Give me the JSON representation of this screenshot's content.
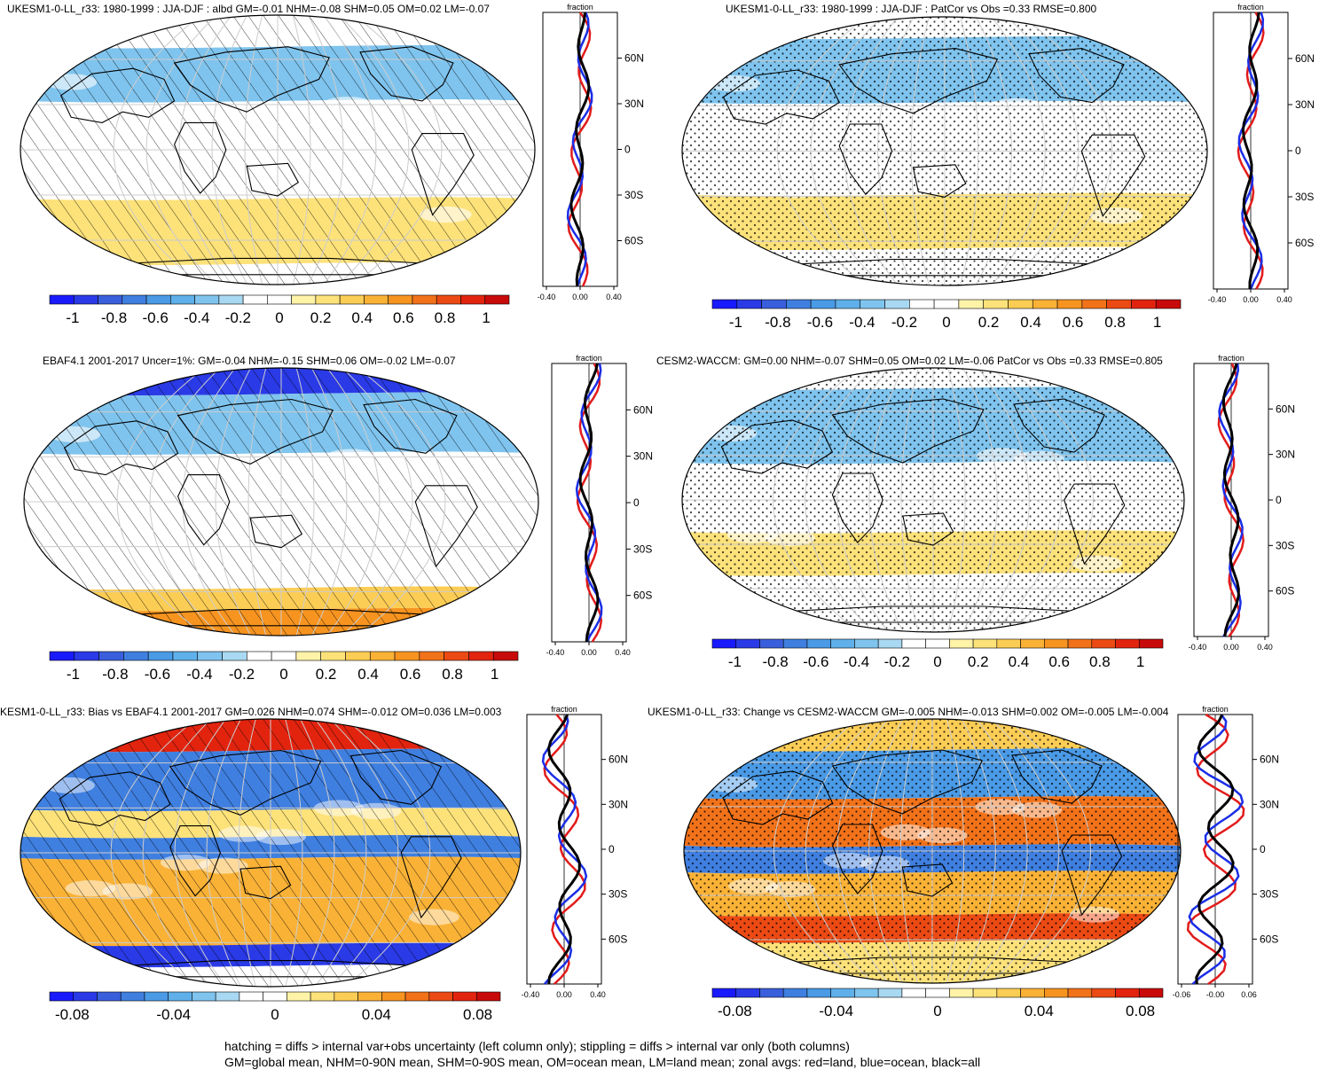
{
  "palette": [
    "#1a1aff",
    "#2a3ae6",
    "#3a5fdc",
    "#3f7fe0",
    "#4a9ae6",
    "#5fb0ea",
    "#7fc4ee",
    "#a8d8f2",
    "#ffffff",
    "#ffffff",
    "#fff3a8",
    "#fde27a",
    "#fccd55",
    "#fab236",
    "#f79420",
    "#f2721a",
    "#ec4a14",
    "#e2240f",
    "#c80a0a"
  ],
  "lat_ticks": [
    "60N",
    "30N",
    "0",
    "30S",
    "60S"
  ],
  "zonal_axis_title": "fraction",
  "panels": [
    {
      "id": "p1",
      "title": "UKESM1-0-LL_r33: 1980-1999 : JJA-DJF : albd GM=-0.01 NHM=-0.08 SHM=0.05 OM=0.02 LM=-0.07",
      "pattern": "hatch",
      "cbar_labels": [
        "-1",
        "-0.8",
        "-0.6",
        "-0.4",
        "-0.2",
        "0",
        "0.2",
        "0.4",
        "0.6",
        "0.8",
        "1"
      ],
      "zonal_x_labels": [
        "-0.40",
        "0.00",
        "0.40"
      ]
    },
    {
      "id": "p2",
      "title": "UKESM1-0-LL_r33: 1980-1999 : JJA-DJF : PatCor vs Obs =0.33 RMSE=0.800",
      "pattern": "stipple",
      "cbar_labels": [
        "-1",
        "-0.8",
        "-0.6",
        "-0.4",
        "-0.2",
        "0",
        "0.2",
        "0.4",
        "0.6",
        "0.8",
        "1"
      ],
      "zonal_x_labels": [
        "-0.40",
        "0.00",
        "0.40"
      ]
    },
    {
      "id": "p3",
      "title": "EBAF4.1 2001-2017 Uncer=1%: GM=-0.04 NHM=-0.15 SHM=0.06 OM=-0.02 LM=-0.07",
      "pattern": "hatch",
      "cbar_labels": [
        "-1",
        "-0.8",
        "-0.6",
        "-0.4",
        "-0.2",
        "0",
        "0.2",
        "0.4",
        "0.6",
        "0.8",
        "1"
      ],
      "zonal_x_labels": [
        "-0.40",
        "0.00",
        "0.40"
      ]
    },
    {
      "id": "p4",
      "title": "CESM2-WACCM: GM=0.00 NHM=-0.07 SHM=0.05 OM=0.02 LM=-0.06 PatCor vs Obs =0.33 RMSE=0.805",
      "pattern": "stipple",
      "cbar_labels": [
        "-1",
        "-0.8",
        "-0.6",
        "-0.4",
        "-0.2",
        "0",
        "0.2",
        "0.4",
        "0.6",
        "0.8",
        "1"
      ],
      "zonal_x_labels": [
        "-0.40",
        "0.00",
        "0.40"
      ]
    },
    {
      "id": "p5",
      "title": "KESM1-0-LL_r33: Bias vs EBAF4.1 2001-2017 GM=0.026 NHM=0.074 SHM=-0.012 OM=0.036 LM=0.003",
      "pattern": "hatch",
      "cbar_labels": [
        "-0.08",
        "-0.04",
        "0",
        "0.04",
        "0.08"
      ],
      "zonal_x_labels": [
        "-0.40",
        "0.00",
        "0.40"
      ]
    },
    {
      "id": "p6",
      "title": "UKESM1-0-LL_r33: Change vs CESM2-WACCM GM=-0.005 NHM=-0.013 SHM=0.002 OM=-0.005 LM=-0.004",
      "pattern": "stipple",
      "cbar_labels": [
        "-0.08",
        "-0.04",
        "0",
        "0.04",
        "0.08"
      ],
      "zonal_x_labels": [
        "-0.06",
        "-0.00",
        "0.06"
      ]
    }
  ],
  "footer": {
    "line1": "hatching = diffs > internal var+obs uncertainty (left column only); stippling = diffs > internal var only (both columns)",
    "line2": "GM=global mean, NHM=0-90N mean, SHM=0-90S mean, OM=ocean mean, LM=land mean; zonal avgs: red=land, blue=ocean, black=all"
  }
}
